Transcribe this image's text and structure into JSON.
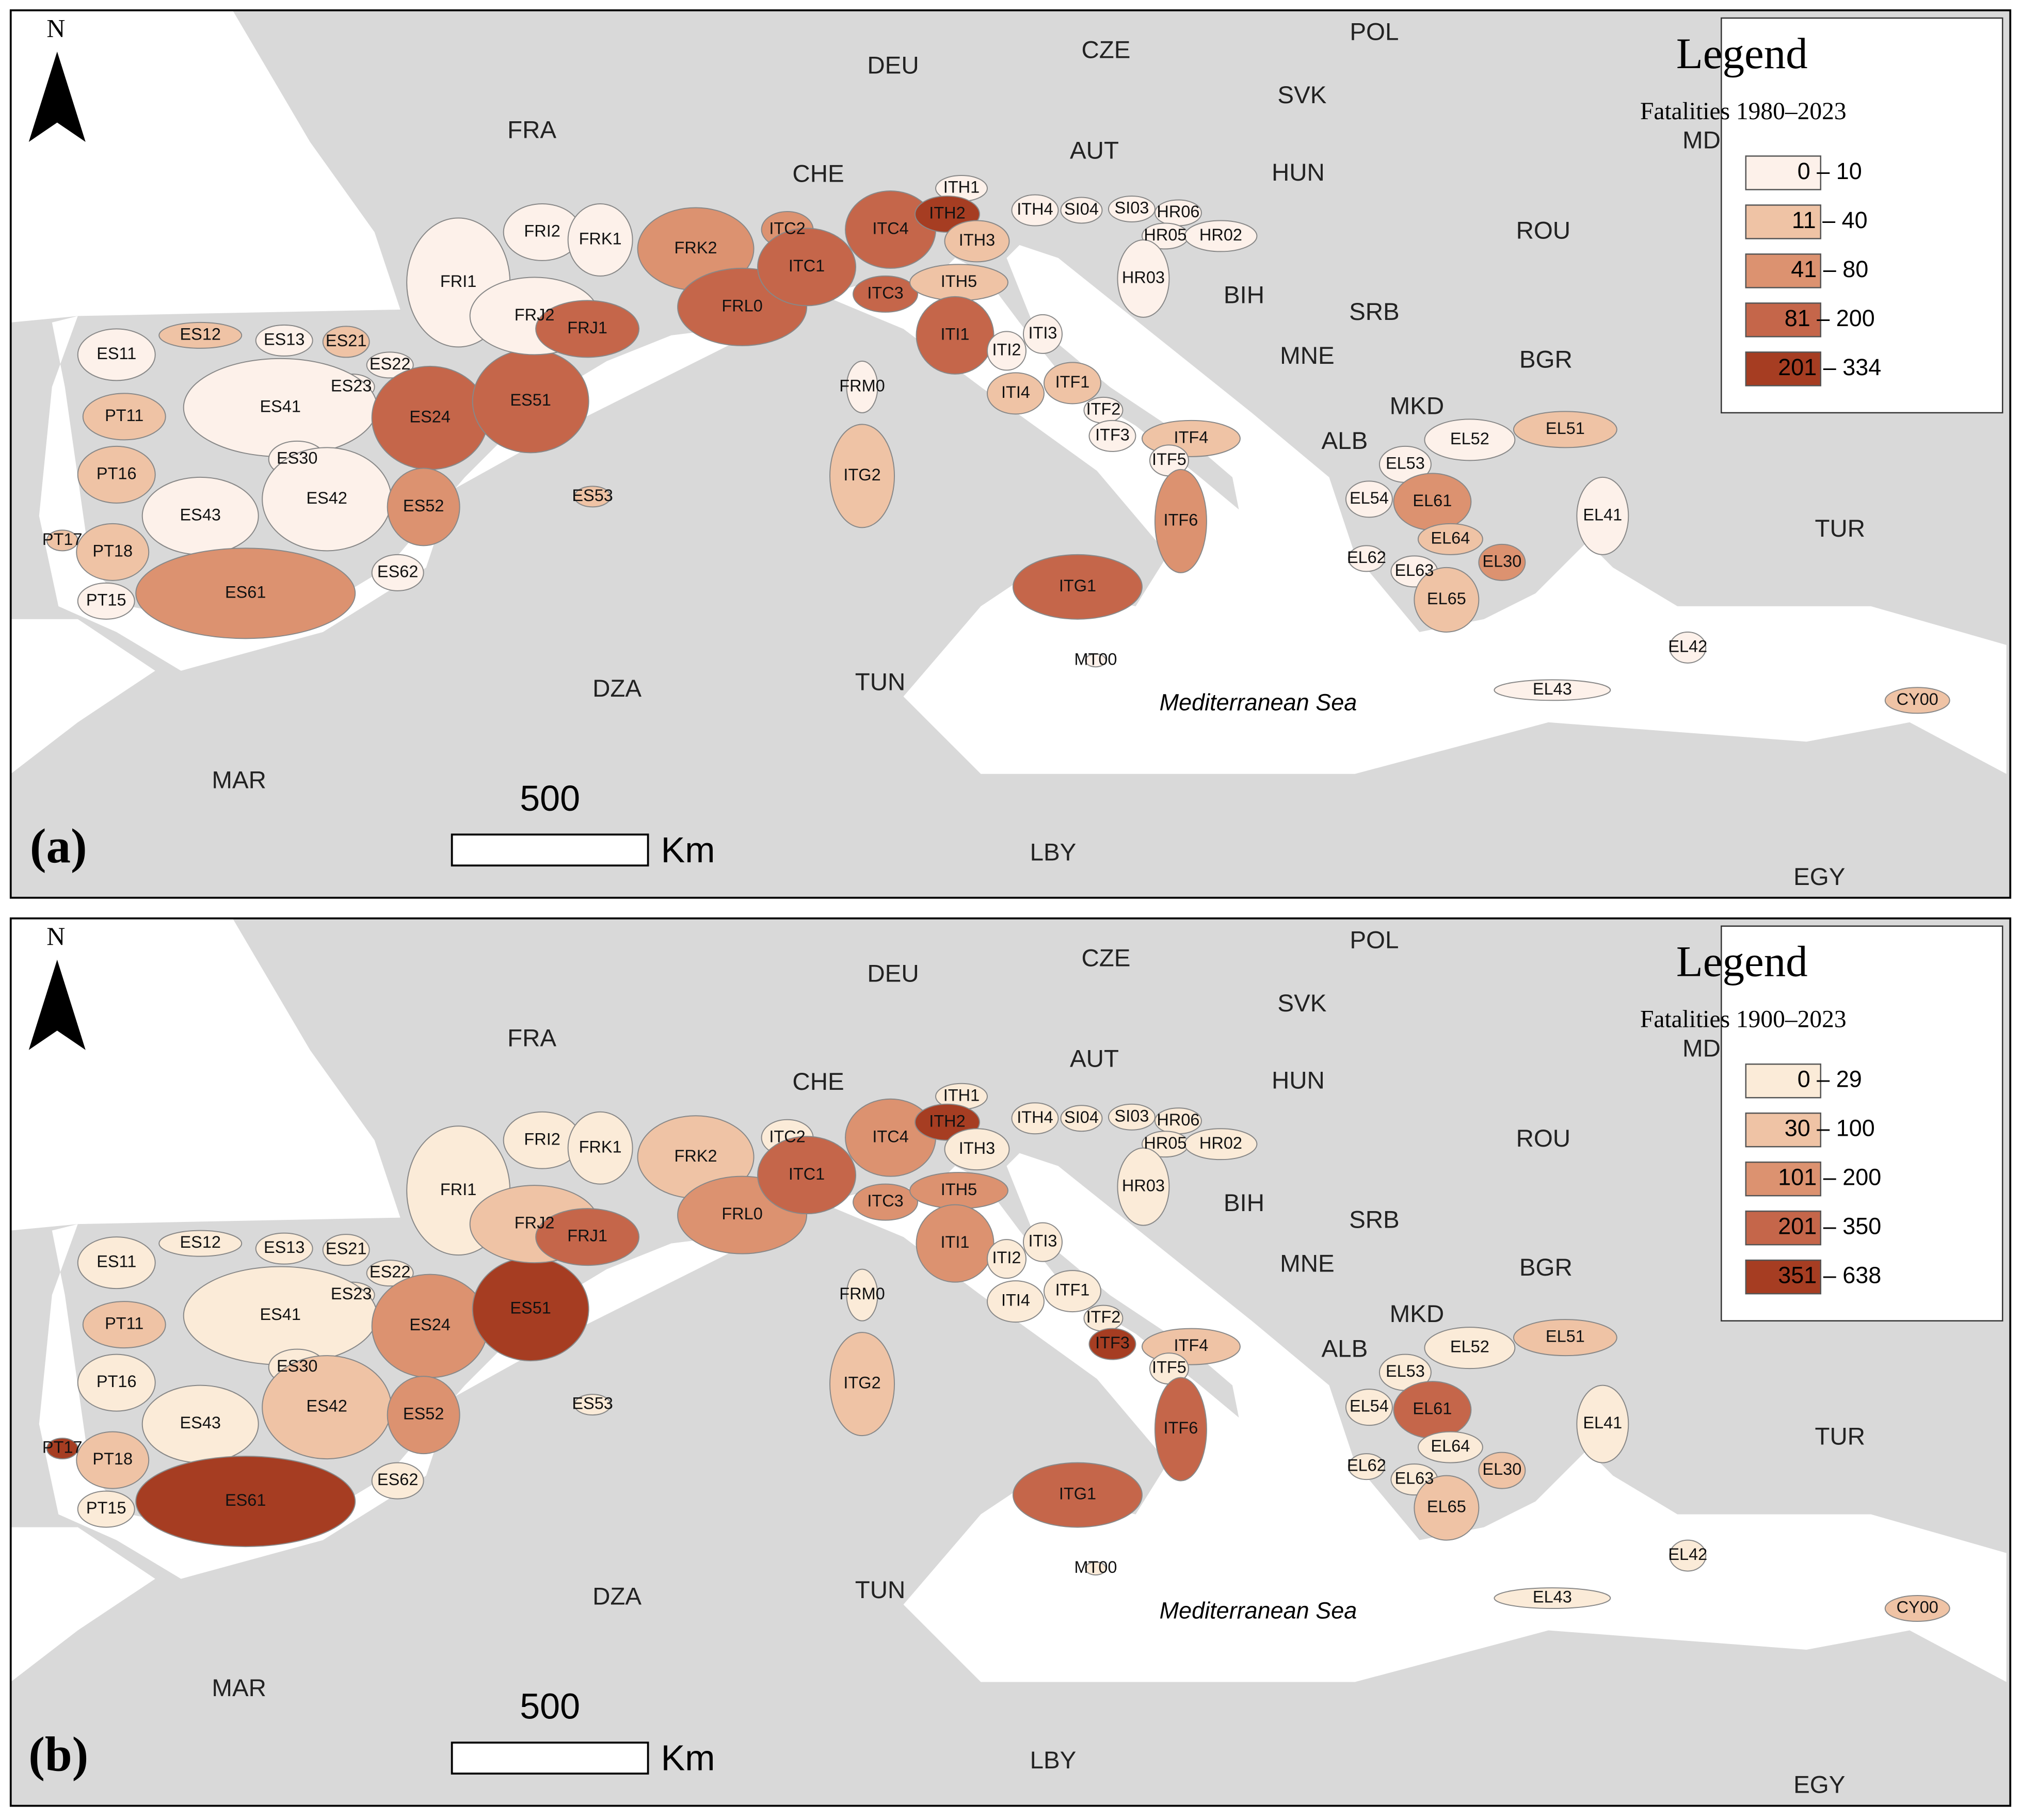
{
  "north": "N",
  "scale": {
    "value": "500",
    "unit": "Km"
  },
  "sea_label": "Mediterranean Sea",
  "countries": [
    "DEU",
    "CZE",
    "POL",
    "SVK",
    "FRA",
    "AUT",
    "HUN",
    "CHE",
    "MDA",
    "ROU",
    "BIH",
    "SRB",
    "BGR",
    "MNE",
    "MKD",
    "ALB",
    "TUR",
    "DZA",
    "TUN",
    "MAR",
    "LBY",
    "EGY"
  ],
  "regions": [
    "ES11",
    "ES12",
    "ES13",
    "ES21",
    "ES22",
    "ES23",
    "ES41",
    "ES24",
    "ES51",
    "PT11",
    "PT16",
    "ES30",
    "ES42",
    "ES43",
    "ES52",
    "ES53",
    "PT17",
    "PT18",
    "PT15",
    "ES61",
    "ES62",
    "FRI1",
    "FRI2",
    "FRK1",
    "FRJ2",
    "FRJ1",
    "FRK2",
    "FRL0",
    "ITC2",
    "ITC1",
    "ITC4",
    "ITC3",
    "ITH1",
    "ITH2",
    "ITH3",
    "ITH4",
    "SI04",
    "SI03",
    "HR06",
    "HR05",
    "HR02",
    "HR03",
    "ITH5",
    "ITI1",
    "ITI2",
    "ITI3",
    "ITI4",
    "ITF1",
    "ITF2",
    "ITF3",
    "ITF4",
    "ITF5",
    "ITF6",
    "ITG1",
    "ITG2",
    "FRM0",
    "MT00",
    "EL51",
    "EL52",
    "EL53",
    "EL54",
    "EL61",
    "EL64",
    "EL62",
    "EL63",
    "EL30",
    "EL65",
    "EL41",
    "EL42",
    "EL43",
    "CY00"
  ],
  "panels": [
    {
      "tag": "(a)",
      "legend": {
        "title": "Legend",
        "subtitle": "Fatalities 1980–2023",
        "classes": [
          {
            "label": "0 – 10",
            "color": "#fdf1ea"
          },
          {
            "label": "11 – 40",
            "color": "#efc3a5"
          },
          {
            "label": "41 – 80",
            "color": "#dc9270"
          },
          {
            "label": "81 – 200",
            "color": "#c5664a"
          },
          {
            "label": "201 – 334",
            "color": "#a63d22"
          }
        ]
      },
      "region_classes": [
        0,
        1,
        0,
        1,
        0,
        0,
        0,
        3,
        3,
        1,
        1,
        0,
        0,
        0,
        2,
        1,
        1,
        1,
        0,
        2,
        0,
        0,
        0,
        0,
        0,
        3,
        2,
        3,
        2,
        3,
        3,
        3,
        0,
        4,
        1,
        0,
        0,
        0,
        0,
        0,
        0,
        0,
        1,
        3,
        0,
        0,
        1,
        1,
        0,
        0,
        1,
        0,
        2,
        3,
        1,
        0,
        0,
        1,
        0,
        0,
        0,
        2,
        1,
        0,
        0,
        2,
        1,
        0,
        0,
        0,
        1
      ]
    },
    {
      "tag": "(b)",
      "legend": {
        "title": "Legend",
        "subtitle": "Fatalities 1900–2023",
        "classes": [
          {
            "label": "0 – 29",
            "color": "#fbebd8"
          },
          {
            "label": "30 – 100",
            "color": "#efc3a5"
          },
          {
            "label": "101 – 200",
            "color": "#dc9270"
          },
          {
            "label": "201 – 350",
            "color": "#c5664a"
          },
          {
            "label": "351 – 638",
            "color": "#a63d22"
          }
        ]
      },
      "region_classes": [
        0,
        0,
        0,
        0,
        0,
        0,
        0,
        2,
        4,
        1,
        0,
        0,
        1,
        0,
        2,
        0,
        4,
        1,
        0,
        4,
        0,
        0,
        0,
        0,
        1,
        3,
        1,
        2,
        0,
        3,
        2,
        2,
        0,
        4,
        0,
        0,
        0,
        0,
        0,
        0,
        0,
        0,
        2,
        2,
        0,
        0,
        0,
        0,
        0,
        4,
        1,
        0,
        3,
        3,
        1,
        0,
        0,
        1,
        0,
        0,
        0,
        3,
        0,
        0,
        0,
        1,
        1,
        0,
        0,
        0,
        1
      ]
    }
  ]
}
